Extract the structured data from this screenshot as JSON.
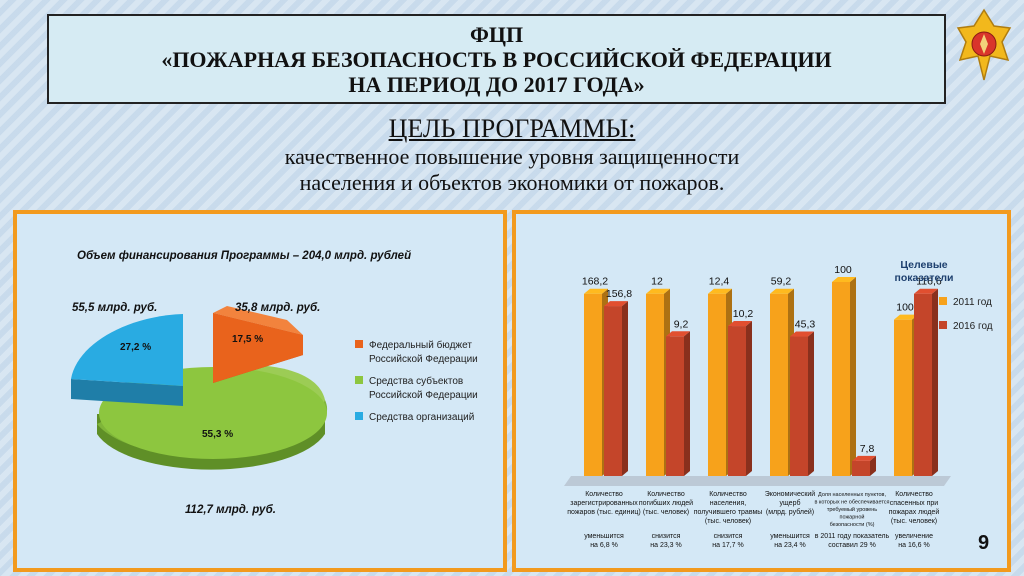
{
  "header": {
    "line1": "ФЦП",
    "line2": "«ПОЖАРНАЯ БЕЗОПАСНОСТЬ В РОССИЙСКОЙ ФЕДЕРАЦИИ",
    "line3": "НА ПЕРИОД ДО 2017 ГОДА»"
  },
  "goal": {
    "heading": "ЦЕЛЬ ПРОГРАММЫ:",
    "text1": "качественное повышение уровня защищенности",
    "text2": "населения и объектов экономики от пожаров."
  },
  "page_number": "9",
  "chart_data": [
    {
      "type": "pie",
      "title": "Объем финансирования Программы – 204,0 млрд. рублей",
      "slices": [
        {
          "name": "Федеральный бюджет Российской Федерации",
          "value": 17.5,
          "percent_label": "17,5 %",
          "amount_label": "35,8 млрд. руб.",
          "color": "#e9631c"
        },
        {
          "name": "Средства субъектов Российской Федерации",
          "value": 55.3,
          "percent_label": "55,3 %",
          "amount_label": "112,7 млрд. руб.",
          "color": "#8dc63f"
        },
        {
          "name": "Средства организаций",
          "value": 27.2,
          "percent_label": "27,2 %",
          "amount_label": "55,5 млрд. руб.",
          "color": "#29abe2"
        }
      ],
      "legend": {
        "items": [
          {
            "line1": "Федеральный бюджет",
            "line2": "Российской Федерации",
            "color": "#e9631c"
          },
          {
            "line1": "Средства субъектов",
            "line2": "Российской Федерации",
            "color": "#8dc63f"
          },
          {
            "line1": "Средства организаций",
            "line2": "",
            "color": "#29abe2"
          }
        ]
      }
    },
    {
      "type": "bar",
      "legend": {
        "title1": "Целевые",
        "title2": "показатели",
        "placement": "top-right"
      },
      "series": [
        {
          "name": "2011 год",
          "color": "#f7a21b",
          "values": [
            168.2,
            12,
            12.4,
            59.2,
            100,
            100
          ],
          "labels": [
            "168,2",
            "12",
            "12,4",
            "59,2",
            "100",
            "100"
          ]
        },
        {
          "name": "2016 год",
          "color": "#c4452a",
          "values": [
            156.8,
            9.2,
            10.2,
            45.3,
            7.8,
            116.6
          ],
          "labels": [
            "156,8",
            "9,2",
            "10,2",
            "45,3",
            "7,8",
            "116,6"
          ]
        }
      ],
      "categories": [
        {
          "label": [
            "Количество",
            "зарегистрированных",
            "пожаров (тыс. единиц)"
          ],
          "note": [
            "уменьшится",
            "на 6,8 %"
          ]
        },
        {
          "label": [
            "Количество",
            "погибших людей",
            "(тыс. человек)"
          ],
          "note": [
            "снизится",
            "на 23,3 %"
          ]
        },
        {
          "label": [
            "Количество",
            "населения,",
            "получившего травмы",
            "(тыс. человек)"
          ],
          "note": [
            "снизится",
            "на 17,7 %"
          ]
        },
        {
          "label": [
            "Экономический",
            "ущерб",
            "(млрд. рублей)"
          ],
          "note": [
            "уменьшится",
            "на 23,4 %"
          ]
        },
        {
          "label": [
            "Доля населенных пунктов,",
            "в которых не обеспечивается",
            "требуемый уровень",
            "пожарной",
            "безопасности (%)"
          ],
          "note": [
            "в 2011 году показатель",
            "составил 29 %"
          ]
        },
        {
          "label": [
            "Количество",
            "спасенных при",
            "пожарах людей",
            "(тыс. человек)"
          ],
          "note": [
            "увеличение",
            "на 16,6 %"
          ]
        }
      ],
      "note": "values drawn with per-category scale"
    }
  ]
}
